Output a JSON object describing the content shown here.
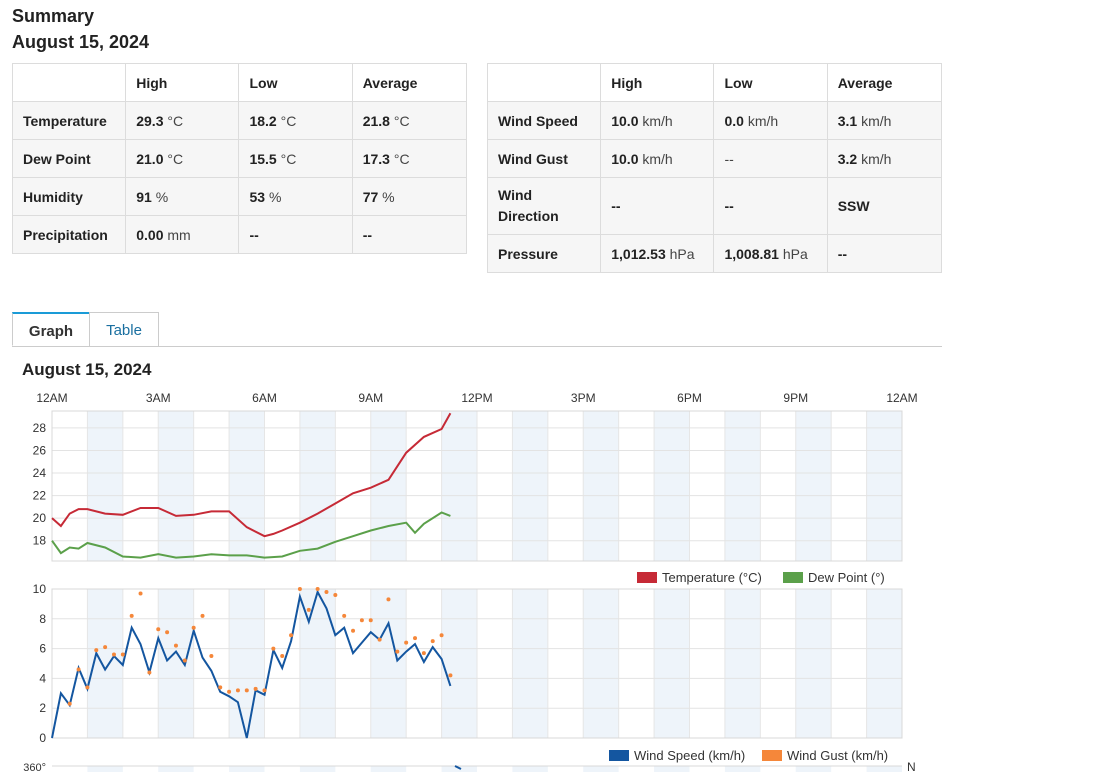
{
  "summary": {
    "title": "Summary",
    "date": "August 15, 2024"
  },
  "table1": {
    "headers": [
      "",
      "High",
      "Low",
      "Average"
    ],
    "rows": [
      {
        "label": "Temperature",
        "high": "29.3",
        "high_unit": "°C",
        "low": "18.2",
        "low_unit": "°C",
        "avg": "21.8",
        "avg_unit": "°C"
      },
      {
        "label": "Dew Point",
        "high": "21.0",
        "high_unit": "°C",
        "low": "15.5",
        "low_unit": "°C",
        "avg": "17.3",
        "avg_unit": "°C"
      },
      {
        "label": "Humidity",
        "high": "91",
        "high_unit": "%",
        "low": "53",
        "low_unit": "%",
        "avg": "77",
        "avg_unit": "%"
      },
      {
        "label": "Precipitation",
        "high": "0.00",
        "high_unit": "mm",
        "low": "--",
        "low_unit": "",
        "avg": "--",
        "avg_unit": ""
      }
    ]
  },
  "table2": {
    "headers": [
      "",
      "High",
      "Low",
      "Average"
    ],
    "rows": [
      {
        "label": "Wind Speed",
        "high": "10.0",
        "high_unit": "km/h",
        "low": "0.0",
        "low_unit": "km/h",
        "avg": "3.1",
        "avg_unit": "km/h"
      },
      {
        "label": "Wind Gust",
        "high": "10.0",
        "high_unit": "km/h",
        "low": "--",
        "low_unit": "",
        "avg": "3.2",
        "avg_unit": "km/h"
      },
      {
        "label": "Wind Direction",
        "high": "--",
        "high_unit": "",
        "low": "--",
        "low_unit": "",
        "avg": "SSW",
        "avg_unit": ""
      },
      {
        "label": "Pressure",
        "high": "1,012.53",
        "high_unit": "hPa",
        "low": "1,008.81",
        "low_unit": "hPa",
        "avg": "--",
        "avg_unit": ""
      }
    ]
  },
  "tabs": [
    {
      "label": "Graph",
      "active": true
    },
    {
      "label": "Table",
      "active": false
    }
  ],
  "graph": {
    "date": "August 15, 2024"
  },
  "chart_data": [
    {
      "type": "line",
      "x_ticks": [
        "12AM",
        "3AM",
        "6AM",
        "9AM",
        "12PM",
        "3PM",
        "6PM",
        "9PM",
        "12AM"
      ],
      "y_ticks": [
        "18",
        "20",
        "22",
        "24",
        "26",
        "28"
      ],
      "xlim": [
        0,
        24
      ],
      "ylim": [
        16.2,
        29.5
      ],
      "grid": true,
      "legend_position": "bottom-right",
      "series": [
        {
          "name": "Temperature (°C)",
          "color": "#c62a36",
          "x": [
            0,
            0.25,
            0.5,
            0.75,
            1,
            1.5,
            2,
            2.5,
            3,
            3.5,
            4,
            4.5,
            5,
            5.5,
            6,
            6.25,
            6.5,
            7,
            7.5,
            8,
            8.5,
            9,
            9.5,
            10,
            10.5,
            11,
            11.25
          ],
          "y": [
            20,
            19.3,
            20.4,
            20.8,
            20.8,
            20.4,
            20.3,
            20.9,
            20.9,
            20.2,
            20.3,
            20.6,
            20.6,
            19.2,
            18.4,
            18.6,
            18.9,
            19.6,
            20.4,
            21.3,
            22.2,
            22.7,
            23.4,
            25.8,
            27.2,
            27.9,
            29.3
          ]
        },
        {
          "name": "Dew Point (°)",
          "color": "#5ba04a",
          "x": [
            0,
            0.25,
            0.5,
            0.75,
            1,
            1.5,
            2,
            2.5,
            3,
            3.5,
            4,
            4.5,
            5,
            5.5,
            6,
            6.5,
            7,
            7.5,
            8,
            8.5,
            9,
            9.5,
            10,
            10.25,
            10.5,
            11,
            11.25
          ],
          "y": [
            18,
            16.9,
            17.4,
            17.3,
            17.8,
            17.4,
            16.6,
            16.5,
            16.8,
            16.5,
            16.6,
            16.8,
            16.7,
            16.7,
            16.5,
            16.6,
            17.1,
            17.3,
            17.9,
            18.4,
            18.9,
            19.3,
            19.6,
            18.7,
            19.5,
            20.5,
            20.2
          ]
        }
      ]
    },
    {
      "type": "line",
      "y_ticks": [
        "0",
        "2",
        "4",
        "6",
        "8",
        "10"
      ],
      "xlim": [
        0,
        24
      ],
      "ylim": [
        0,
        10
      ],
      "grid": true,
      "legend_position": "bottom-right",
      "series": [
        {
          "name": "Wind Speed (km/h)",
          "color": "#1456a0",
          "x": [
            0,
            0.25,
            0.5,
            0.75,
            1,
            1.25,
            1.5,
            1.75,
            2,
            2.25,
            2.5,
            2.75,
            3,
            3.25,
            3.5,
            3.75,
            4,
            4.25,
            4.5,
            4.75,
            5,
            5.25,
            5.5,
            5.75,
            6,
            6.25,
            6.5,
            6.75,
            7,
            7.25,
            7.5,
            7.75,
            8,
            8.25,
            8.5,
            8.75,
            9,
            9.25,
            9.5,
            9.75,
            10,
            10.25,
            10.5,
            10.75,
            11,
            11.25
          ],
          "y": [
            0,
            3,
            2.2,
            4.7,
            3.3,
            5.7,
            4.6,
            5.5,
            4.9,
            7.4,
            6.3,
            4.4,
            6.7,
            5.2,
            5.8,
            4.9,
            7.2,
            5.4,
            4.5,
            3.1,
            2.8,
            2.4,
            0,
            3.2,
            2.9,
            5.9,
            4.7,
            6.5,
            9.5,
            7.8,
            9.8,
            8.7,
            6.9,
            7.4,
            5.7,
            6.4,
            7.1,
            6.6,
            7.7,
            5.2,
            5.8,
            6.3,
            5.1,
            6.1,
            5.3,
            3.5
          ]
        },
        {
          "name": "Wind Gust (km/h)",
          "color": "#f5873a",
          "x": [
            0.5,
            0.75,
            1,
            1.25,
            1.5,
            1.75,
            2,
            2.25,
            2.5,
            2.75,
            3,
            3.25,
            3.5,
            3.75,
            4,
            4.25,
            4.5,
            4.75,
            5,
            5.25,
            5.5,
            5.75,
            6,
            6.25,
            6.5,
            6.75,
            7,
            7.25,
            7.5,
            7.75,
            8,
            8.25,
            8.5,
            8.75,
            9,
            9.25,
            9.5,
            9.75,
            10,
            10.25,
            10.5,
            10.75,
            11,
            11.25
          ],
          "y": [
            2.3,
            4.6,
            3.4,
            5.9,
            6.1,
            5.6,
            5.6,
            8.2,
            9.7,
            4.4,
            7.3,
            7.1,
            6.2,
            5.2,
            7.4,
            8.2,
            5.5,
            3.4,
            3.1,
            3.2,
            3.2,
            3.3,
            3.2,
            6,
            5.5,
            6.9,
            10,
            8.6,
            10,
            9.8,
            9.6,
            8.2,
            7.2,
            7.9,
            7.9,
            6.6,
            9.3,
            5.8,
            6.4,
            6.7,
            5.7,
            6.5,
            6.9,
            4.2
          ]
        }
      ]
    },
    {
      "type": "scatter",
      "y_ticks": [
        "360°"
      ],
      "right_label": "N"
    }
  ]
}
